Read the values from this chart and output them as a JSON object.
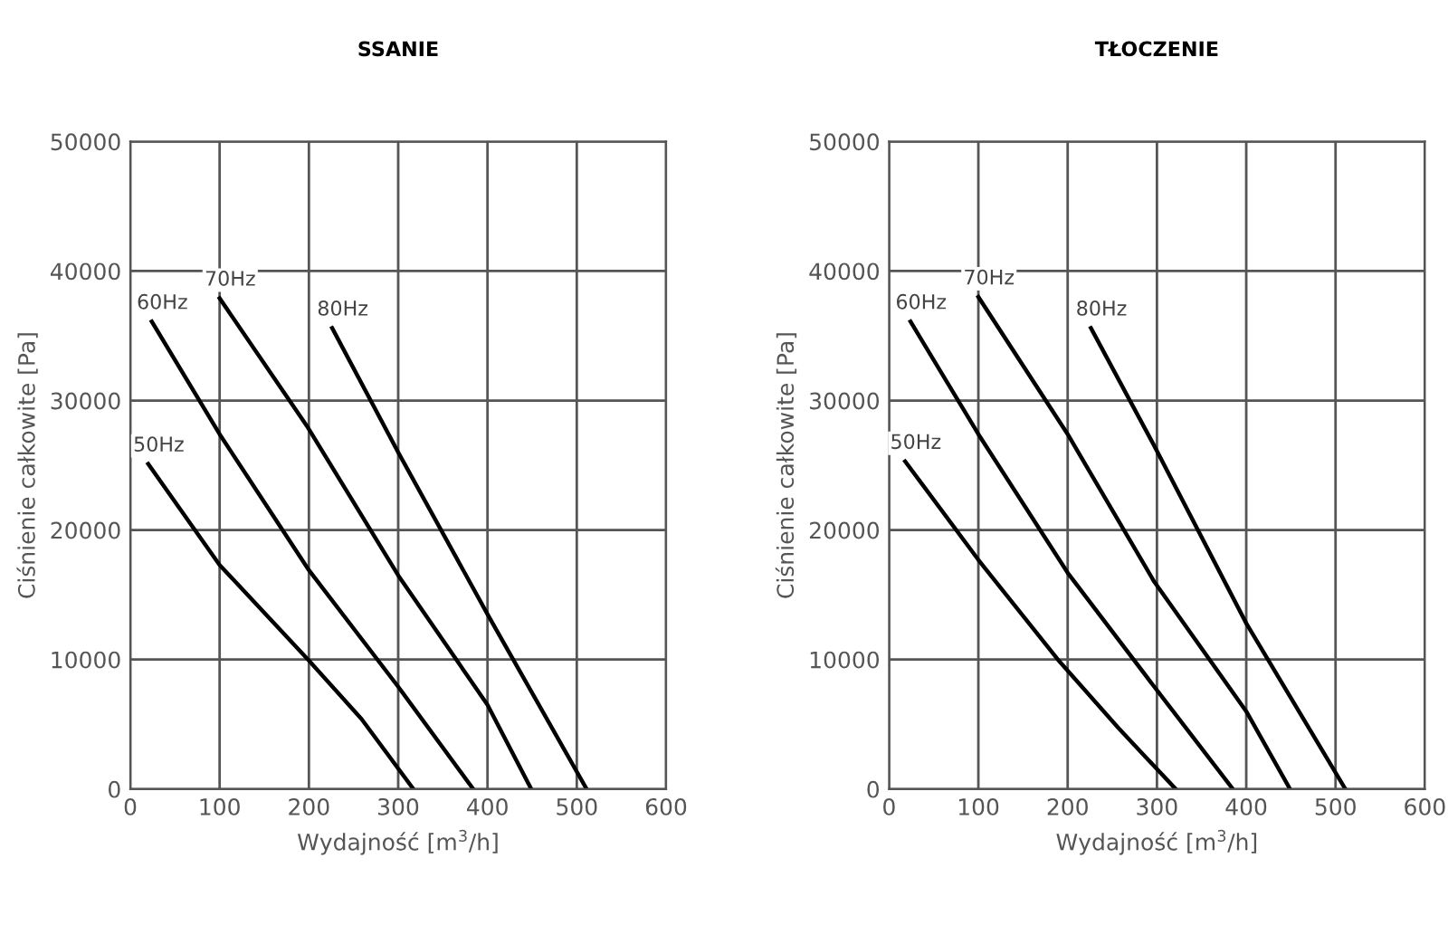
{
  "chart_data": [
    {
      "type": "line",
      "title": "SSANIE",
      "xlabel": "Wydajność [m$^{3}$/h]",
      "ylabel": "Ciśnienie całkowite [Pa]",
      "xlim": [
        0,
        600
      ],
      "xticks": [
        0,
        100,
        200,
        300,
        400,
        500,
        600
      ],
      "ylim": [
        0,
        50000
      ],
      "yticks": [
        0,
        10000,
        20000,
        30000,
        40000,
        50000
      ],
      "grid": true,
      "marker": "none",
      "line_style": "solid",
      "series": [
        {
          "name": "50Hz",
          "color": "#000000",
          "x": [
            20,
            100,
            199,
            259,
            317
          ],
          "values": [
            25100,
            17300,
            10000,
            5400,
            0
          ]
        },
        {
          "name": "60Hz",
          "color": "#000000",
          "x": [
            24,
            100,
            199,
            300,
            384
          ],
          "values": [
            36100,
            27400,
            17000,
            7900,
            0
          ]
        },
        {
          "name": "70Hz",
          "color": "#000000",
          "x": [
            100,
            199,
            300,
            400,
            449
          ],
          "values": [
            37900,
            27900,
            16500,
            6500,
            0
          ]
        },
        {
          "name": "80Hz",
          "color": "#000000",
          "x": [
            226,
            300,
            400,
            511
          ],
          "values": [
            35600,
            26000,
            13500,
            0
          ]
        }
      ]
    },
    {
      "type": "line",
      "title": "TŁOCZENIE",
      "xlabel": "Wydajność [m$^{3}$/h]",
      "ylabel": "Ciśnienie całkowite [Pa]",
      "xlim": [
        0,
        600
      ],
      "xticks": [
        0,
        100,
        200,
        300,
        400,
        500,
        600
      ],
      "ylim": [
        0,
        50000
      ],
      "yticks": [
        0,
        10000,
        20000,
        30000,
        40000,
        50000
      ],
      "grid": true,
      "marker": "none",
      "line_style": "solid",
      "series": [
        {
          "name": "50Hz",
          "color": "#000000",
          "x": [
            18,
            100,
            189,
            257,
            321
          ],
          "values": [
            25300,
            17700,
            10000,
            4700,
            0
          ]
        },
        {
          "name": "60Hz",
          "color": "#000000",
          "x": [
            24,
            100,
            200,
            297,
            385
          ],
          "values": [
            36100,
            27400,
            16700,
            7900,
            0
          ]
        },
        {
          "name": "70Hz",
          "color": "#000000",
          "x": [
            100,
            200,
            297,
            400,
            449
          ],
          "values": [
            38000,
            27400,
            16000,
            6000,
            0
          ]
        },
        {
          "name": "80Hz",
          "color": "#000000",
          "x": [
            226,
            297,
            400,
            511
          ],
          "values": [
            35600,
            26500,
            12800,
            0
          ]
        }
      ]
    }
  ]
}
